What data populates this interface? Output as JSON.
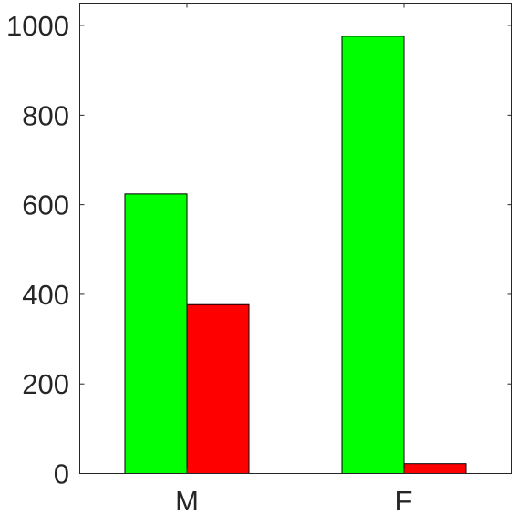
{
  "chart_data": {
    "type": "bar",
    "categories": [
      "M",
      "F"
    ],
    "series": [
      {
        "values": [
          624,
          976
        ],
        "color": "#00ff00"
      },
      {
        "values": [
          377,
          22
        ],
        "color": "#ff0000"
      }
    ],
    "yticks": [
      0,
      200,
      400,
      600,
      800,
      1000
    ],
    "ytick_labels": [
      "0",
      "200",
      "400",
      "600",
      "800",
      "1000"
    ],
    "ylim": [
      0,
      1050
    ],
    "grid": false,
    "box": true,
    "legend": "none"
  }
}
